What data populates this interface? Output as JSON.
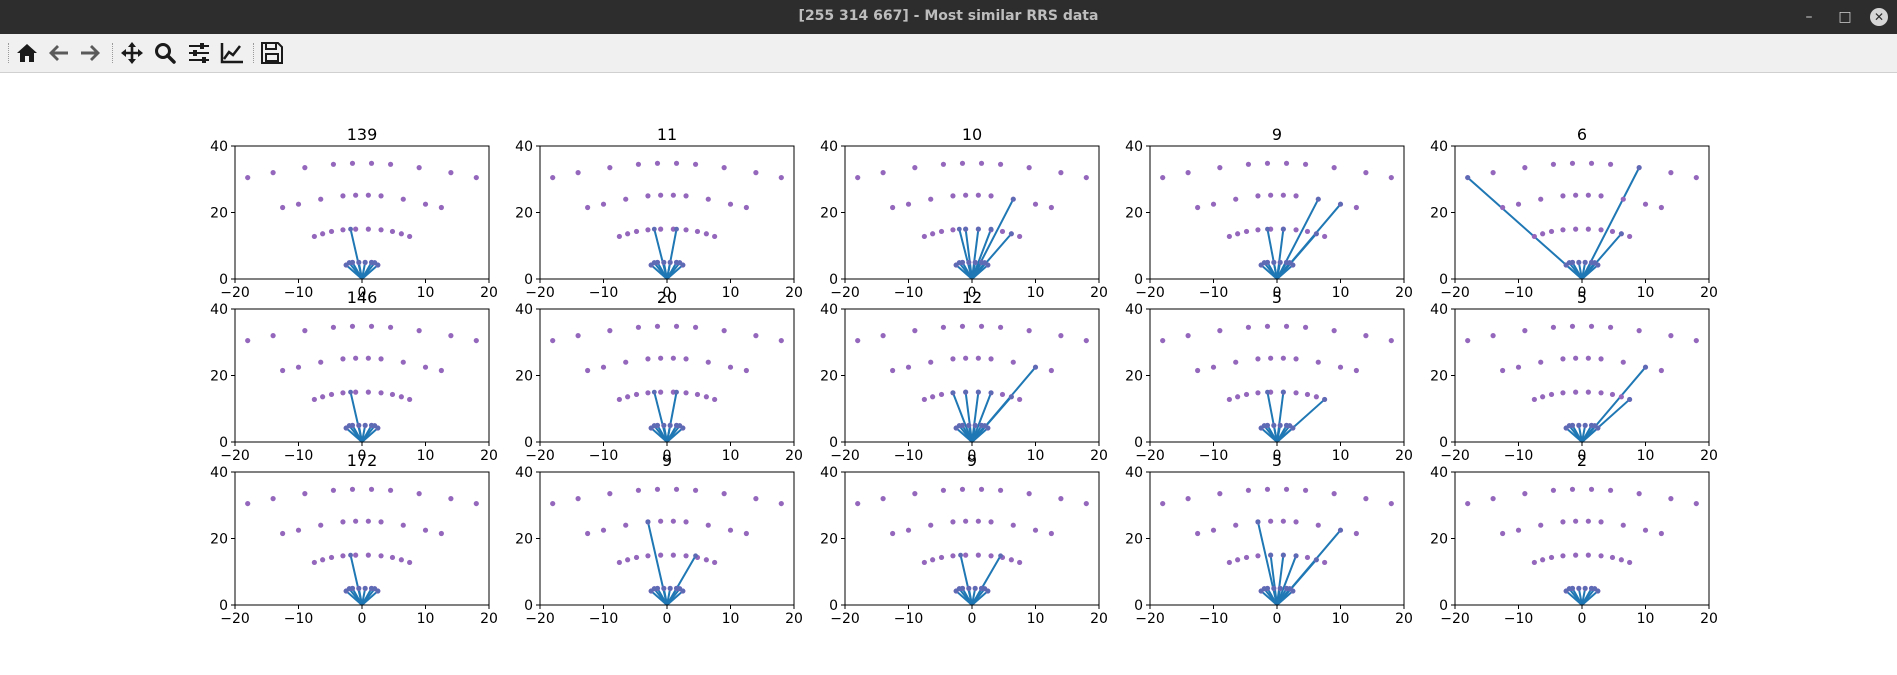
{
  "window": {
    "title": "[255 314 667] - Most similar RRS data",
    "controls": {
      "minimize": "–",
      "maximize": "□",
      "close": "✕"
    }
  },
  "toolbar": {
    "buttons": [
      {
        "name": "home-button",
        "icon": "home-icon"
      },
      {
        "name": "back-button",
        "icon": "arrow-left-icon"
      },
      {
        "name": "forward-button",
        "icon": "arrow-right-icon"
      },
      {
        "name": "pan-button",
        "icon": "move-icon"
      },
      {
        "name": "zoom-button",
        "icon": "magnifier-icon"
      },
      {
        "name": "configure-subplots-button",
        "icon": "sliders-icon"
      },
      {
        "name": "edit-axes-button",
        "icon": "line-chart-icon"
      },
      {
        "name": "save-button",
        "icon": "floppy-disk-icon"
      }
    ]
  },
  "colors": {
    "points": "#9467bd",
    "lines": "#1f77b4",
    "titlebar": "#2d2d2d",
    "toolbar": "#f0f0f0"
  },
  "chart_data": {
    "type": "scatter",
    "layout": "3x5 subplot grid",
    "xlim": [
      -20,
      20
    ],
    "ylim": [
      0,
      40
    ],
    "xticks": [
      "−20",
      "−10",
      "0",
      "10",
      "20"
    ],
    "yticks": [
      "0",
      "20",
      "40"
    ],
    "grid": false,
    "points": [
      [
        -18,
        30.5
      ],
      [
        -14,
        32
      ],
      [
        -9,
        33.5
      ],
      [
        -4.5,
        34.5
      ],
      [
        -1.5,
        34.8
      ],
      [
        1.5,
        34.8
      ],
      [
        4.5,
        34.5
      ],
      [
        9,
        33.5
      ],
      [
        14,
        32
      ],
      [
        18,
        30.5
      ],
      [
        -12.5,
        21.5
      ],
      [
        -10,
        22.5
      ],
      [
        -6.5,
        24
      ],
      [
        -3,
        25
      ],
      [
        -1,
        25.2
      ],
      [
        1,
        25.2
      ],
      [
        3,
        25
      ],
      [
        6.5,
        24
      ],
      [
        10,
        22.5
      ],
      [
        12.5,
        21.5
      ],
      [
        -7.5,
        12.8
      ],
      [
        -6.2,
        13.6
      ],
      [
        -4.8,
        14.3
      ],
      [
        -3,
        14.8
      ],
      [
        -1,
        15
      ],
      [
        1,
        15
      ],
      [
        3,
        14.8
      ],
      [
        4.8,
        14.3
      ],
      [
        6.2,
        13.6
      ],
      [
        7.5,
        12.8
      ],
      [
        -2.5,
        4.2
      ],
      [
        -2,
        4.9
      ],
      [
        -1.5,
        5
      ],
      [
        -0.5,
        5
      ],
      [
        0.5,
        5
      ],
      [
        1.5,
        5
      ],
      [
        2,
        4.9
      ],
      [
        2.5,
        4.2
      ]
    ],
    "origin": [
      0,
      0
    ],
    "subplots": [
      {
        "title": "139",
        "lines": [
          [
            -2,
            4.9
          ],
          [
            -1.5,
            5
          ],
          [
            -0.5,
            5
          ],
          [
            0.5,
            5
          ],
          [
            1.5,
            5
          ],
          [
            2,
            4.9
          ],
          [
            -2.5,
            4.2
          ],
          [
            2.5,
            4.2
          ],
          [
            -1.8,
            15
          ]
        ]
      },
      {
        "title": "11",
        "lines": [
          [
            -2,
            4.9
          ],
          [
            -1.5,
            5
          ],
          [
            -0.5,
            5
          ],
          [
            0.5,
            5
          ],
          [
            1.5,
            5
          ],
          [
            2,
            4.9
          ],
          [
            -2.5,
            4.2
          ],
          [
            2.5,
            4.2
          ],
          [
            -2,
            15
          ],
          [
            1.5,
            15
          ]
        ]
      },
      {
        "title": "10",
        "lines": [
          [
            -2,
            4.9
          ],
          [
            -1.5,
            5
          ],
          [
            -0.5,
            5
          ],
          [
            0.5,
            5
          ],
          [
            1.5,
            5
          ],
          [
            2,
            4.9
          ],
          [
            -2.5,
            4.2
          ],
          [
            2.5,
            4.2
          ],
          [
            -2,
            15
          ],
          [
            -1,
            15
          ],
          [
            1,
            15
          ],
          [
            3,
            15
          ],
          [
            6.2,
            13.6
          ],
          [
            6.5,
            24
          ]
        ]
      },
      {
        "title": "9",
        "lines": [
          [
            -2,
            4.9
          ],
          [
            -1.5,
            5
          ],
          [
            -0.5,
            5
          ],
          [
            0.5,
            5
          ],
          [
            1.5,
            5
          ],
          [
            2,
            4.9
          ],
          [
            -2.5,
            4.2
          ],
          [
            2.5,
            4.2
          ],
          [
            -1.5,
            15
          ],
          [
            1,
            15
          ],
          [
            6.2,
            13.6
          ],
          [
            6.5,
            24
          ],
          [
            10,
            22.5
          ]
        ]
      },
      {
        "title": "6",
        "lines": [
          [
            -2,
            4.9
          ],
          [
            -1.5,
            5
          ],
          [
            -0.5,
            5
          ],
          [
            0.5,
            5
          ],
          [
            1.5,
            5
          ],
          [
            2,
            4.9
          ],
          [
            -2.5,
            4.2
          ],
          [
            2.5,
            4.2
          ],
          [
            -18,
            30.5
          ],
          [
            6.2,
            13.6
          ],
          [
            9,
            33.5
          ]
        ]
      },
      {
        "title": "146",
        "lines": [
          [
            -2,
            4.9
          ],
          [
            -1.5,
            5
          ],
          [
            -0.5,
            5
          ],
          [
            0.5,
            5
          ],
          [
            1.5,
            5
          ],
          [
            2,
            4.9
          ],
          [
            -2.5,
            4.2
          ],
          [
            2.5,
            4.2
          ],
          [
            -1.8,
            15
          ]
        ]
      },
      {
        "title": "20",
        "lines": [
          [
            -2,
            4.9
          ],
          [
            -1.5,
            5
          ],
          [
            -0.5,
            5
          ],
          [
            0.5,
            5
          ],
          [
            1.5,
            5
          ],
          [
            2,
            4.9
          ],
          [
            -2.5,
            4.2
          ],
          [
            2.5,
            4.2
          ],
          [
            -2,
            15
          ],
          [
            1.5,
            15
          ]
        ]
      },
      {
        "title": "12",
        "lines": [
          [
            -2,
            4.9
          ],
          [
            -1.5,
            5
          ],
          [
            -0.5,
            5
          ],
          [
            0.5,
            5
          ],
          [
            1.5,
            5
          ],
          [
            2,
            4.9
          ],
          [
            -2.5,
            4.2
          ],
          [
            2.5,
            4.2
          ],
          [
            -3,
            14.8
          ],
          [
            -1,
            15
          ],
          [
            1,
            15
          ],
          [
            3,
            14.8
          ],
          [
            6.2,
            13.6
          ],
          [
            10,
            22.5
          ]
        ]
      },
      {
        "title": "5",
        "lines": [
          [
            -2,
            4.9
          ],
          [
            -1.5,
            5
          ],
          [
            -0.5,
            5
          ],
          [
            0.5,
            5
          ],
          [
            1.5,
            5
          ],
          [
            2,
            4.9
          ],
          [
            -2.5,
            4.2
          ],
          [
            2.5,
            4.2
          ],
          [
            -1.5,
            15
          ],
          [
            1,
            15
          ],
          [
            7.5,
            12.8
          ]
        ]
      },
      {
        "title": "5",
        "lines": [
          [
            -2,
            4.9
          ],
          [
            -1.5,
            5
          ],
          [
            -0.5,
            5
          ],
          [
            0.5,
            5
          ],
          [
            1.5,
            5
          ],
          [
            2,
            4.9
          ],
          [
            -2.5,
            4.2
          ],
          [
            2.5,
            4.2
          ],
          [
            7.5,
            12.8
          ],
          [
            10,
            22.5
          ]
        ]
      },
      {
        "title": "172",
        "lines": [
          [
            -2,
            4.9
          ],
          [
            -1.5,
            5
          ],
          [
            -0.5,
            5
          ],
          [
            0.5,
            5
          ],
          [
            1.5,
            5
          ],
          [
            2,
            4.9
          ],
          [
            -2.5,
            4.2
          ],
          [
            2.5,
            4.2
          ],
          [
            -1.8,
            15
          ]
        ]
      },
      {
        "title": "9",
        "lines": [
          [
            -2,
            4.9
          ],
          [
            -1.5,
            5
          ],
          [
            -0.5,
            5
          ],
          [
            0.5,
            5
          ],
          [
            1.5,
            5
          ],
          [
            2,
            4.9
          ],
          [
            -2.5,
            4.2
          ],
          [
            2.5,
            4.2
          ],
          [
            -3,
            25
          ],
          [
            4.5,
            14.8
          ]
        ]
      },
      {
        "title": "9",
        "lines": [
          [
            -2,
            4.9
          ],
          [
            -1.5,
            5
          ],
          [
            -0.5,
            5
          ],
          [
            0.5,
            5
          ],
          [
            1.5,
            5
          ],
          [
            2,
            4.9
          ],
          [
            -2.5,
            4.2
          ],
          [
            2.5,
            4.2
          ],
          [
            -1.8,
            15
          ],
          [
            4.5,
            14.8
          ]
        ]
      },
      {
        "title": "5",
        "lines": [
          [
            -2,
            4.9
          ],
          [
            -1.5,
            5
          ],
          [
            -0.5,
            5
          ],
          [
            0.5,
            5
          ],
          [
            1.5,
            5
          ],
          [
            2,
            4.9
          ],
          [
            -2.5,
            4.2
          ],
          [
            2.5,
            4.2
          ],
          [
            -3,
            25
          ],
          [
            -1,
            15
          ],
          [
            1,
            15
          ],
          [
            3,
            14.8
          ],
          [
            6.2,
            13.6
          ],
          [
            10,
            22.5
          ]
        ]
      },
      {
        "title": "2",
        "lines": [
          [
            -2,
            4.9
          ],
          [
            -1.5,
            5
          ],
          [
            -0.5,
            5
          ],
          [
            0.5,
            5
          ],
          [
            1.5,
            5
          ],
          [
            2,
            4.9
          ],
          [
            -2.5,
            4.2
          ],
          [
            2.5,
            4.2
          ]
        ]
      }
    ]
  }
}
